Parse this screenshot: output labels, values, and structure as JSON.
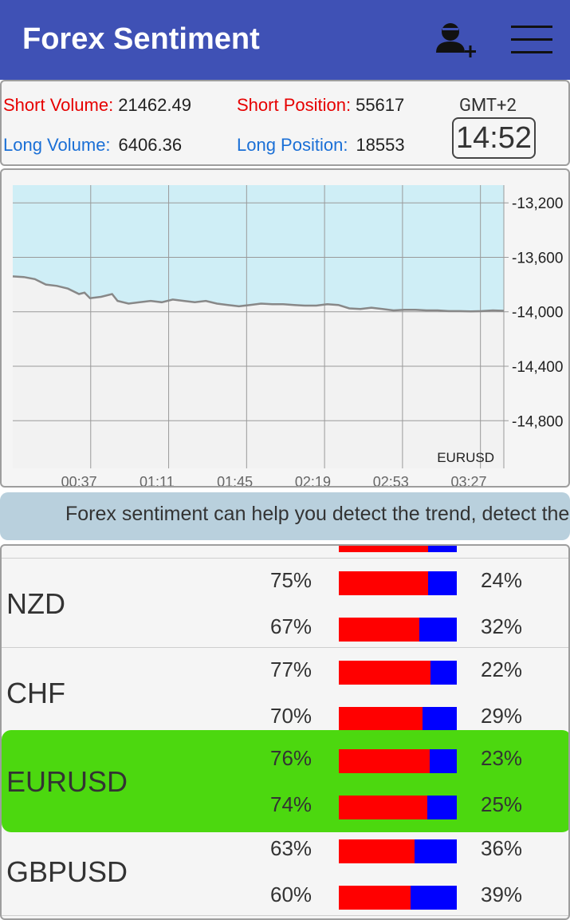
{
  "appbar": {
    "title": "Forex Sentiment",
    "add_user_icon": "add-user-icon",
    "menu_icon": "hamburger-menu-icon",
    "color": "#3F51B5"
  },
  "stats": {
    "short_volume_label": "Short Volume:",
    "short_volume_value": "21462.49",
    "long_volume_label": "Long Volume:",
    "long_volume_value": "6406.36",
    "short_position_label": "Short Position:",
    "short_position_value": "55617",
    "long_position_label": "Long Position:",
    "long_position_value": "18553",
    "timezone": "GMT+2",
    "clock": "14:52"
  },
  "chart_data": {
    "type": "area",
    "label": "EURUSD",
    "x_ticks": [
      "00:37",
      "01:11",
      "01:45",
      "02:19",
      "02:53",
      "03:27"
    ],
    "y_ticks": [
      "-13,200",
      "-13,600",
      "-14,000",
      "-14,400",
      "-14,800"
    ],
    "ylim": [
      -15150,
      -13070
    ],
    "grid": true,
    "series": [
      {
        "points": [
          [
            0,
            -13740
          ],
          [
            4,
            -13745
          ],
          [
            8,
            -13760
          ],
          [
            12,
            -13800
          ],
          [
            16,
            -13810
          ],
          [
            20,
            -13830
          ],
          [
            24,
            -13870
          ],
          [
            26,
            -13860
          ],
          [
            28,
            -13900
          ],
          [
            32,
            -13890
          ],
          [
            36,
            -13870
          ],
          [
            38,
            -13920
          ],
          [
            42,
            -13940
          ],
          [
            46,
            -13930
          ],
          [
            50,
            -13920
          ],
          [
            54,
            -13930
          ],
          [
            58,
            -13910
          ],
          [
            62,
            -13920
          ],
          [
            66,
            -13930
          ],
          [
            70,
            -13920
          ],
          [
            74,
            -13940
          ],
          [
            78,
            -13950
          ],
          [
            82,
            -13960
          ],
          [
            86,
            -13950
          ],
          [
            90,
            -13940
          ],
          [
            94,
            -13945
          ],
          [
            98,
            -13945
          ],
          [
            102,
            -13950
          ],
          [
            106,
            -13955
          ],
          [
            110,
            -13955
          ],
          [
            114,
            -13945
          ],
          [
            118,
            -13950
          ],
          [
            122,
            -13975
          ],
          [
            126,
            -13980
          ],
          [
            130,
            -13970
          ],
          [
            134,
            -13980
          ],
          [
            138,
            -13990
          ],
          [
            142,
            -13985
          ],
          [
            146,
            -13985
          ],
          [
            150,
            -13990
          ],
          [
            154,
            -13990
          ],
          [
            158,
            -13995
          ],
          [
            162,
            -13995
          ],
          [
            166,
            -13997
          ],
          [
            170,
            -13995
          ],
          [
            174,
            -13990
          ],
          [
            178,
            -13993
          ]
        ]
      }
    ]
  },
  "ticker": {
    "text": "Forex sentiment can help you detect the trend, detect the reversal"
  },
  "pairs": [
    {
      "name": "",
      "short1": "",
      "long1": "",
      "short2": "",
      "long2": "",
      "s1": 0.76,
      "s2": 0.76
    },
    {
      "name": "NZD",
      "short1": "75%",
      "long1": "24%",
      "short2": "67%",
      "long2": "32%",
      "s1": 0.76,
      "s2": 0.68
    },
    {
      "name": "CHF",
      "short1": "77%",
      "long1": "22%",
      "short2": "70%",
      "long2": "29%",
      "s1": 0.78,
      "s2": 0.71
    },
    {
      "name": "EURUSD",
      "short1": "76%",
      "long1": "23%",
      "short2": "74%",
      "long2": "25%",
      "s1": 0.77,
      "s2": 0.75,
      "highlight": true
    },
    {
      "name": "GBPUSD",
      "short1": "63%",
      "long1": "36%",
      "short2": "60%",
      "long2": "39%",
      "s1": 0.64,
      "s2": 0.61
    }
  ]
}
